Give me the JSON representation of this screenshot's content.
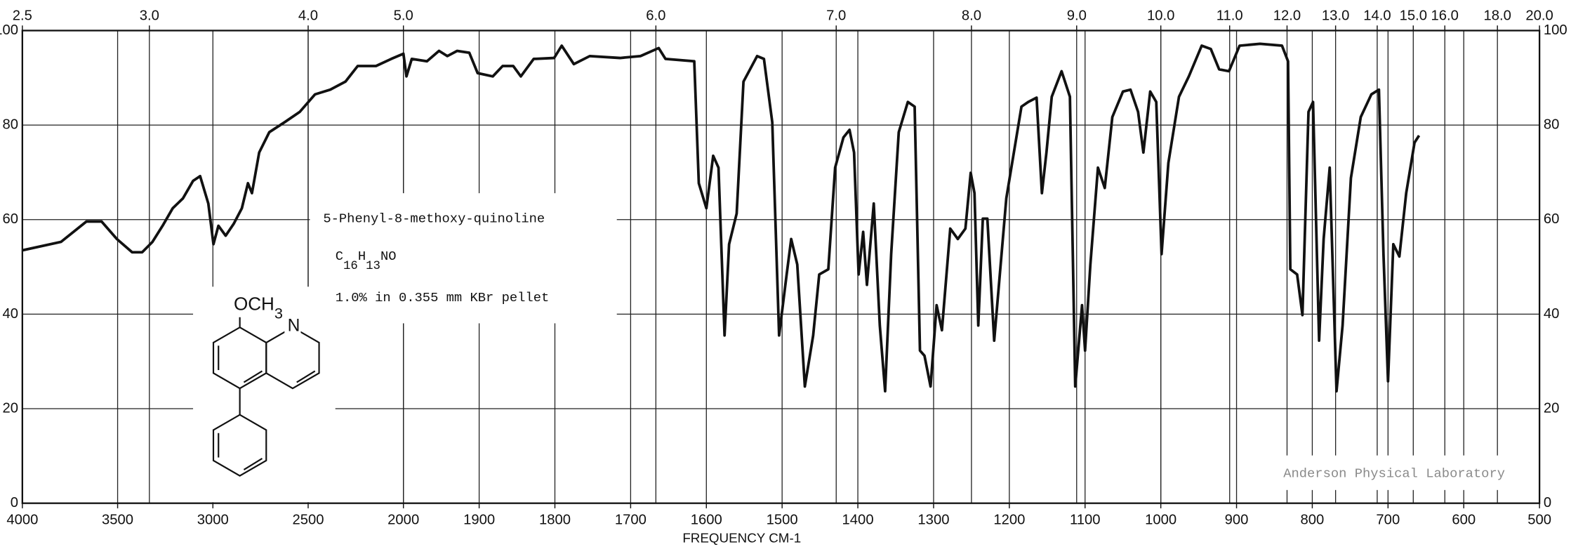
{
  "chart_data": {
    "type": "line",
    "xlabel": "FREQUENCY CM-1",
    "xlim": [
      4000,
      500
    ],
    "xticks": [
      4000,
      3500,
      3000,
      2500,
      2000,
      1900,
      1800,
      1700,
      1600,
      1500,
      1400,
      1300,
      1200,
      1100,
      1000,
      900,
      800,
      700,
      600,
      500
    ],
    "x2ticks": [
      2.5,
      {
        "value": 3,
        "label": "3.0"
      },
      {
        "value": 4,
        "label": "4.0"
      },
      {
        "value": 5,
        "label": "5.0"
      },
      {
        "value": 6,
        "label": "6.0"
      },
      {
        "value": 7,
        "label": "7.0"
      },
      {
        "value": 8,
        "label": "8.0"
      },
      {
        "value": 9,
        "label": "9.0"
      },
      {
        "value": 10,
        "label": "10.0"
      },
      {
        "value": 11,
        "label": "11.0"
      },
      {
        "value": 12,
        "label": "12.0"
      },
      {
        "value": 13,
        "label": "13.0"
      },
      {
        "value": 14,
        "label": "14.0"
      },
      {
        "value": 15,
        "label": "15.0"
      },
      {
        "value": 16,
        "label": "16.0"
      },
      {
        "value": 18,
        "label": "18.0"
      },
      {
        "value": 20,
        "label": "20.0"
      }
    ],
    "ylim": [
      0,
      100
    ],
    "yticks": [
      0,
      20,
      40,
      60,
      80,
      100
    ],
    "grid": true,
    "color": "#111111",
    "x": [
      4000,
      3797,
      3664,
      3584,
      3504,
      3424,
      3371,
      3317,
      3264,
      3211,
      3157,
      3104,
      3067,
      3024,
      2997,
      2971,
      2933,
      2891,
      2848,
      2816,
      2795,
      2757,
      2704,
      2624,
      2544,
      2464,
      2384,
      2304,
      2240,
      2144,
      2064,
      2000,
      1996,
      1989,
      1969,
      1953,
      1942,
      1929,
      1913,
      1902,
      1882,
      1869,
      1855,
      1845,
      1828,
      1801,
      1791,
      1775,
      1754,
      1714,
      1687,
      1663,
      1654,
      1616,
      1610,
      1600,
      1591,
      1584,
      1576,
      1570,
      1560,
      1551,
      1533,
      1524,
      1513,
      1504,
      1494,
      1488,
      1480,
      1470,
      1459,
      1451,
      1439,
      1430,
      1419,
      1411,
      1405,
      1399,
      1393,
      1388,
      1379,
      1371,
      1364,
      1356,
      1346,
      1334,
      1325,
      1318,
      1312,
      1304,
      1296,
      1289,
      1278,
      1268,
      1258,
      1251,
      1246,
      1241,
      1235,
      1229,
      1220,
      1204,
      1184,
      1175,
      1164,
      1157,
      1151,
      1144,
      1131,
      1120,
      1113,
      1104,
      1100,
      1093,
      1083,
      1074,
      1064,
      1050,
      1040,
      1030,
      1023,
      1014,
      1006,
      999,
      990,
      976,
      963,
      946,
      934,
      923,
      910,
      896,
      869,
      840,
      832,
      829,
      820,
      813,
      805,
      799,
      791,
      785,
      777,
      768,
      760,
      749,
      736,
      722,
      712,
      706,
      700,
      693,
      685,
      676,
      665,
      659
    ],
    "values": [
      53.5,
      55.3,
      59.6,
      59.6,
      55.9,
      53.1,
      53.1,
      55.3,
      58.7,
      62.4,
      64.5,
      68.2,
      69.2,
      63.4,
      54.8,
      58.7,
      56.6,
      59.1,
      62.4,
      67.7,
      65.6,
      74.2,
      78.5,
      80.6,
      82.8,
      86.5,
      87.5,
      89.2,
      92.5,
      92.5,
      94.0,
      95.1,
      90.3,
      94.0,
      93.5,
      95.7,
      94.6,
      95.7,
      95.3,
      91.0,
      90.3,
      92.5,
      92.5,
      90.3,
      94.0,
      94.2,
      96.8,
      92.9,
      94.6,
      94.2,
      94.6,
      96.3,
      94.0,
      93.5,
      67.7,
      62.4,
      73.5,
      71.0,
      35.5,
      54.8,
      61.3,
      89.2,
      94.6,
      94.0,
      80.6,
      35.5,
      48.4,
      55.9,
      50.5,
      24.7,
      35.5,
      48.4,
      49.5,
      71.0,
      77.4,
      79.0,
      74.2,
      48.4,
      57.4,
      46.2,
      63.4,
      37.6,
      23.7,
      52.7,
      78.5,
      84.9,
      83.9,
      32.3,
      31.2,
      24.7,
      41.9,
      36.6,
      58.1,
      55.9,
      58.1,
      69.9,
      65.6,
      37.6,
      60.2,
      60.2,
      34.4,
      64.5,
      83.9,
      84.9,
      85.8,
      65.6,
      74.2,
      86.0,
      91.4,
      86.0,
      24.7,
      41.9,
      32.3,
      50.5,
      71.0,
      66.7,
      81.7,
      87.1,
      87.5,
      82.8,
      74.2,
      87.1,
      84.9,
      52.7,
      72.0,
      86.0,
      90.3,
      96.8,
      96.1,
      91.8,
      91.4,
      96.8,
      97.2,
      96.8,
      93.5,
      49.5,
      48.4,
      39.8,
      82.8,
      84.9,
      34.4,
      55.9,
      71.0,
      23.7,
      37.6,
      68.8,
      81.7,
      86.5,
      87.5,
      52.7,
      25.8,
      54.8,
      52.2,
      65.6,
      76.3,
      77.8
    ],
    "annotations": {
      "compound": "5-Phenyl-8-methoxy-quinoline",
      "formula": [
        "C",
        "16",
        "H",
        "13",
        "NO"
      ],
      "sample": "1.0% in 0.355 mm  KBr pellet",
      "substituent": [
        "OCH",
        "3"
      ],
      "ring_atom": "N",
      "stamp": "Anderson Physical Laboratory"
    }
  }
}
